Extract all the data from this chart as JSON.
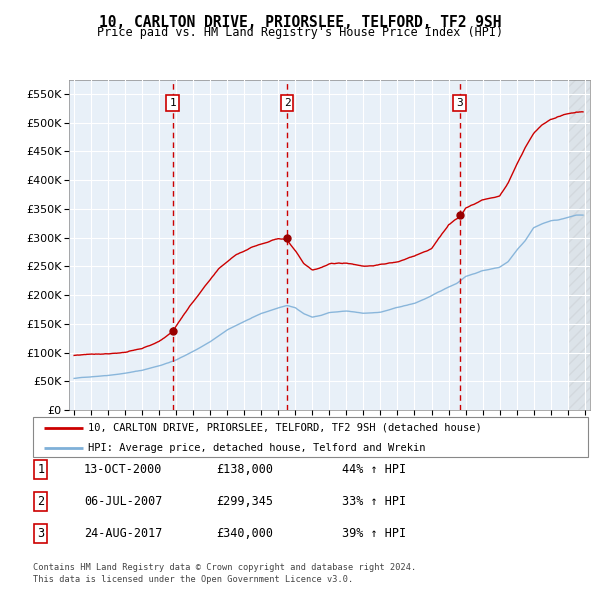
{
  "title": "10, CARLTON DRIVE, PRIORSLEE, TELFORD, TF2 9SH",
  "subtitle": "Price paid vs. HM Land Registry's House Price Index (HPI)",
  "sale_annotations": [
    {
      "num": "1",
      "date": "13-OCT-2000",
      "price": "£138,000",
      "change": "44% ↑ HPI"
    },
    {
      "num": "2",
      "date": "06-JUL-2007",
      "price": "£299,345",
      "change": "33% ↑ HPI"
    },
    {
      "num": "3",
      "date": "24-AUG-2017",
      "price": "£340,000",
      "change": "39% ↑ HPI"
    }
  ],
  "legend_line1": "10, CARLTON DRIVE, PRIORSLEE, TELFORD, TF2 9SH (detached house)",
  "legend_line2": "HPI: Average price, detached house, Telford and Wrekin",
  "footer1": "Contains HM Land Registry data © Crown copyright and database right 2024.",
  "footer2": "This data is licensed under the Open Government Licence v3.0.",
  "red_color": "#cc0000",
  "blue_color": "#7fb0d8",
  "plot_bg": "#e8f0f8",
  "ylim": [
    0,
    575000
  ],
  "yticks": [
    0,
    50000,
    100000,
    150000,
    200000,
    250000,
    300000,
    350000,
    400000,
    450000,
    500000,
    550000
  ],
  "xlim_start": 1994.7,
  "xlim_end": 2025.3,
  "sale_dates_t": [
    2000.79,
    2007.51,
    2017.65
  ],
  "sale_prices": [
    138000,
    299345,
    340000
  ],
  "hpi_anchors_t": [
    1995.0,
    1996.0,
    1997.0,
    1998.0,
    1999.0,
    2000.0,
    2001.0,
    2002.0,
    2003.0,
    2004.0,
    2005.0,
    2006.0,
    2007.0,
    2007.5,
    2008.0,
    2008.5,
    2009.0,
    2009.5,
    2010.0,
    2011.0,
    2012.0,
    2013.0,
    2014.0,
    2015.0,
    2016.0,
    2017.0,
    2017.5,
    2018.0,
    2019.0,
    2020.0,
    2020.5,
    2021.0,
    2021.5,
    2022.0,
    2022.5,
    2023.0,
    2023.5,
    2024.0,
    2024.5
  ],
  "hpi_anchors_v": [
    55000,
    58000,
    61000,
    65000,
    70000,
    78000,
    88000,
    103000,
    120000,
    140000,
    155000,
    168000,
    178000,
    182000,
    178000,
    168000,
    162000,
    165000,
    170000,
    172000,
    168000,
    170000,
    178000,
    185000,
    198000,
    213000,
    220000,
    232000,
    242000,
    248000,
    258000,
    278000,
    295000,
    318000,
    325000,
    330000,
    332000,
    336000,
    340000
  ],
  "red_anchors_t": [
    1995.0,
    1996.0,
    1997.0,
    1998.0,
    1999.0,
    2000.0,
    2000.79,
    2001.5,
    2002.5,
    2003.5,
    2004.5,
    2005.5,
    2006.5,
    2007.0,
    2007.51,
    2008.0,
    2008.5,
    2009.0,
    2009.5,
    2010.0,
    2011.0,
    2012.0,
    2013.0,
    2014.0,
    2015.0,
    2016.0,
    2017.0,
    2017.65,
    2018.0,
    2019.0,
    2020.0,
    2020.5,
    2021.0,
    2021.5,
    2022.0,
    2022.5,
    2023.0,
    2023.5,
    2024.0,
    2024.5
  ],
  "red_anchors_v": [
    95000,
    98000,
    100000,
    103000,
    108000,
    120000,
    138000,
    170000,
    210000,
    245000,
    270000,
    285000,
    295000,
    300000,
    299345,
    280000,
    258000,
    248000,
    252000,
    258000,
    260000,
    255000,
    258000,
    262000,
    272000,
    285000,
    325000,
    340000,
    355000,
    370000,
    375000,
    398000,
    430000,
    460000,
    485000,
    500000,
    510000,
    515000,
    520000,
    522000
  ]
}
